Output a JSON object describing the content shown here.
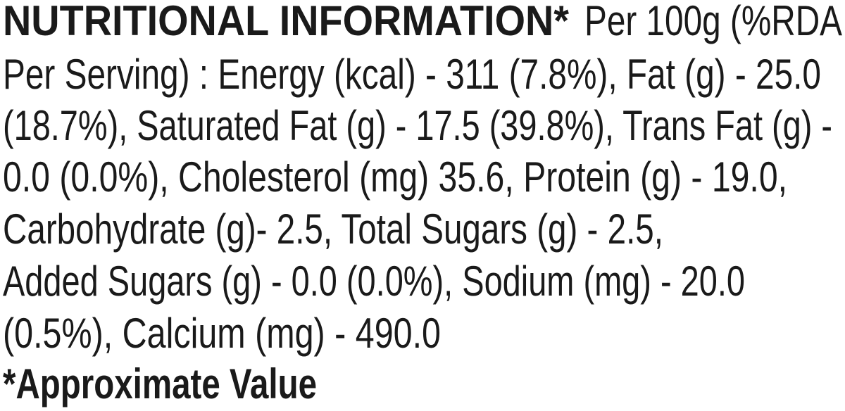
{
  "heading": "NUTRITIONAL INFORMATION*",
  "lines": [
    "Per 100g (%RDA",
    "Per Serving) : Energy (kcal) - 311 (7.8%), Fat (g) - 25.0",
    "(18.7%), Saturated Fat (g) - 17.5 (39.8%), Trans Fat (g) -",
    "0.0 (0.0%), Cholesterol (mg) 35.6, Protein (g) - 19.0,",
    "Carbohydrate (g)- 2.5, Total Sugars (g) - 2.5,",
    "Added Sugars (g) - 0.0 (0.0%), Sodium (mg) - 20.0",
    "(0.5%), Calcium (mg) - 490.0"
  ],
  "footnote": "*Approximate Value"
}
